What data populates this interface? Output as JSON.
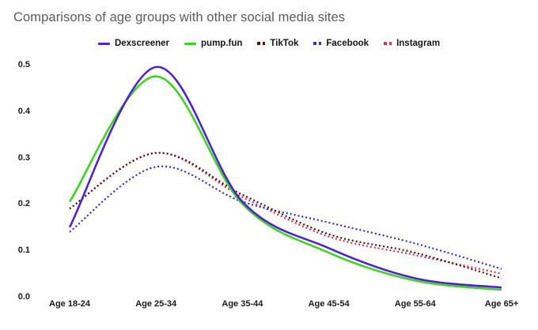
{
  "title": "Comparisons of age groups with other social media sites",
  "chart_data": {
    "type": "line",
    "title": "Comparisons of age groups with other social media sites",
    "categories": [
      "Age 18-24",
      "Age 25-34",
      "Age 35-44",
      "Age 45-54",
      "Age 55-64",
      "Age 65+"
    ],
    "series": [
      {
        "name": "Dexscreener",
        "color": "#4f22cf",
        "line_style": "solid",
        "values": [
          0.15,
          0.495,
          0.205,
          0.105,
          0.04,
          0.02
        ]
      },
      {
        "name": "pump.fun",
        "color": "#3fd420",
        "line_style": "solid",
        "values": [
          0.205,
          0.475,
          0.2,
          0.095,
          0.035,
          0.015
        ]
      },
      {
        "name": "TikTok",
        "color": "#4a1212",
        "line_style": "dotted",
        "values": [
          0.19,
          0.31,
          0.22,
          0.135,
          0.095,
          0.04
        ]
      },
      {
        "name": "Facebook",
        "color": "#2d2dd6",
        "line_style": "dotted",
        "values": [
          0.14,
          0.28,
          0.205,
          0.16,
          0.115,
          0.06
        ]
      },
      {
        "name": "Instagram",
        "color": "#e0314b",
        "line_style": "dotted",
        "values": [
          0.19,
          0.31,
          0.215,
          0.13,
          0.09,
          0.05
        ]
      }
    ],
    "xlabel": "",
    "ylabel": "",
    "ylim": [
      0.0,
      0.5
    ],
    "yticks": [
      "0.5",
      "0.4",
      "0.3",
      "0.2",
      "0.1",
      "0.0"
    ],
    "grid": false,
    "legend_position": "top",
    "background": "#ffffff",
    "title_color": "#5b5b5b"
  }
}
